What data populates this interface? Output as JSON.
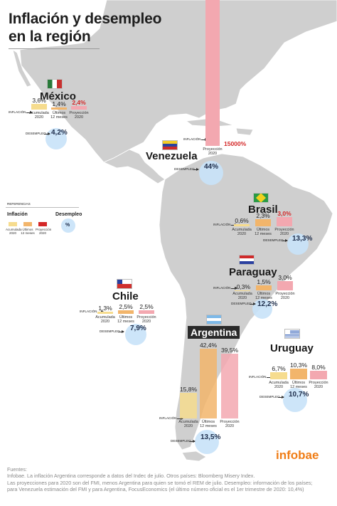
{
  "title_line1": "Inflación y desempleo",
  "title_line2": "en la región",
  "labels": {
    "inflacion": "INFLACIÓN",
    "desempleo": "DESEMPLEO"
  },
  "legend": {
    "heading": "REFERENCIAS",
    "inflacion": "Inflación",
    "desempleo": "Desempleo",
    "items": [
      "Acumulada 2020",
      "Últimos 12 meses",
      "Proyección 2020"
    ],
    "pct": "%"
  },
  "colors": {
    "acumulada": "#f6dc8e",
    "ultimos": "#f2b56b",
    "proyeccion": "#f3a8b0",
    "proyeccion_text": "#d42727",
    "desempleo": "#c8e2f8"
  },
  "chart_data": {
    "type": "bar",
    "categories": [
      "Acumulada 2020",
      "Últimos 12 meses",
      "Proyección 2020"
    ],
    "countries": [
      {
        "name": "México",
        "inflacion": [
          3.6,
          1.4,
          2.4
        ],
        "labels": [
          "3,6%",
          "1,4%",
          "2,4%"
        ],
        "desempleo": 4.2,
        "desempleo_label": "4,2%",
        "highlight_proj": true
      },
      {
        "name": "Venezuela",
        "inflacion": [
          null,
          null,
          15000
        ],
        "labels": [
          "",
          "",
          "15000%"
        ],
        "desempleo": 44,
        "desempleo_label": "44%",
        "highlight_proj": true
      },
      {
        "name": "Brasil",
        "inflacion": [
          0.6,
          2.3,
          3.0
        ],
        "labels": [
          "0,6%",
          "2,3%",
          "3,0%"
        ],
        "desempleo": 13.3,
        "desempleo_label": "13,3%",
        "highlight_proj": true
      },
      {
        "name": "Paraguay",
        "inflacion": [
          -0.3,
          1.5,
          3.0
        ],
        "labels": [
          "-0,3%",
          "1,5%",
          "3,0%"
        ],
        "desempleo": 12.2,
        "desempleo_label": "12,2%",
        "highlight_proj": false
      },
      {
        "name": "Chile",
        "inflacion": [
          1.3,
          2.5,
          2.5
        ],
        "labels": [
          "1,3%",
          "2,5%",
          "2,5%"
        ],
        "desempleo": 7.9,
        "desempleo_label": "7,9%",
        "highlight_proj": false
      },
      {
        "name": "Argentina",
        "inflacion": [
          15.8,
          42.4,
          39.5
        ],
        "labels": [
          "15,8%",
          "42,4%",
          "39,5%"
        ],
        "desempleo": 13.5,
        "desempleo_label": "13,5%",
        "highlight_proj": false
      },
      {
        "name": "Uruguay",
        "inflacion": [
          6.7,
          10.3,
          8.0
        ],
        "labels": [
          "6,7%",
          "10,3%",
          "8,0%"
        ],
        "desempleo": 10.7,
        "desempleo_label": "10,7%",
        "highlight_proj": false
      }
    ]
  },
  "brand": "infobae",
  "sources": [
    "Fuentes:",
    "Infobae. La inflación Argentina corresponde a datos del Indec de julio. Otros países: Bloomberg Misery Index.",
    "Las proyecciones para 2020 son del FMI, menos Argentina para quien se tomó el REM de julio. Desempleo: información de los países;",
    "para Venezuela estimación del FMI y para Argentina, FocusEconomics (el último número oficial es el 1er trimestre de 2020: 10,4%)"
  ]
}
